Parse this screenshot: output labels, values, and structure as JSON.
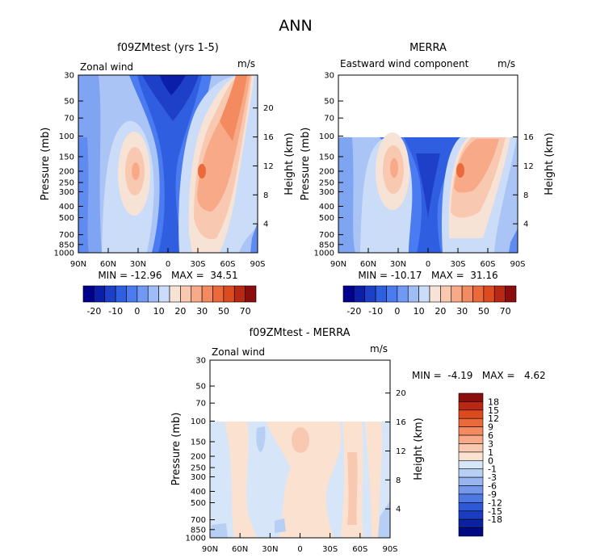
{
  "figure": {
    "title": "ANN"
  },
  "colors": {
    "left_colorbar_hex": [
      "#00008c",
      "#0a1eaa",
      "#1e40c8",
      "#2f5ee0",
      "#4a7bf0",
      "#7098f5",
      "#9fbcf7",
      "#cadcf8",
      "#f7e3d6",
      "#f8c8b0",
      "#f7a988",
      "#f38a60",
      "#eb6a3b",
      "#dc4a20",
      "#b82812",
      "#8c0d0d"
    ],
    "diff_colorbar_hex": [
      "#8c0d0d",
      "#b82812",
      "#dc4a20",
      "#eb6a3b",
      "#f38a60",
      "#f7a988",
      "#f8c8b0",
      "#fbe2d0",
      "#d6e6f8",
      "#b8cff5",
      "#98b5f0",
      "#7498ea",
      "#4f78e2",
      "#2e58d6",
      "#1a3cc0",
      "#0a22a0",
      "#000a80"
    ]
  },
  "chart_data": [
    {
      "type": "heatmap",
      "title": "f09ZMtest (yrs 1-5)",
      "subtitle_left": "Zonal wind",
      "subtitle_right": "m/s",
      "ylabel": "Pressure (mb)",
      "ylabel_right": "Height (km)",
      "x_ticks": [
        "90N",
        "60N",
        "30N",
        "0",
        "30S",
        "60S",
        "90S"
      ],
      "y_ticks": [
        "30",
        "50",
        "70",
        "100",
        "150",
        "200",
        "250",
        "300",
        "400",
        "500",
        "700",
        "850",
        "1000"
      ],
      "y_ticks_right": [
        "20",
        "16",
        "12",
        "8",
        "4"
      ],
      "stats_text": "MIN = -12.96   MAX =  34.51",
      "min": -12.96,
      "max": 34.51,
      "colorbar_labels": [
        "-20",
        "-10",
        "0",
        "10",
        "20",
        "30",
        "50",
        "70"
      ]
    },
    {
      "type": "heatmap",
      "title": "MERRA",
      "subtitle_left": "Eastward wind component",
      "subtitle_right": "m/s",
      "ylabel": "Pressure (mb)",
      "ylabel_right": "Height (km)",
      "x_ticks": [
        "90N",
        "60N",
        "30N",
        "0",
        "30S",
        "60S",
        "90S"
      ],
      "y_ticks": [
        "30",
        "50",
        "70",
        "100",
        "150",
        "200",
        "250",
        "300",
        "400",
        "500",
        "700",
        "850",
        "1000"
      ],
      "y_ticks_right": [
        "16",
        "12",
        "8",
        "4"
      ],
      "data_top_pressure": 100,
      "stats_text": "MIN = -10.17   MAX =  31.16",
      "min": -10.17,
      "max": 31.16,
      "colorbar_labels": [
        "-20",
        "-10",
        "0",
        "10",
        "20",
        "30",
        "50",
        "70"
      ]
    },
    {
      "type": "heatmap",
      "title": "f09ZMtest - MERRA",
      "subtitle_left": "Zonal wind",
      "subtitle_right": "m/s",
      "ylabel": "Pressure (mb)",
      "ylabel_right": "Height (km)",
      "x_ticks": [
        "90N",
        "60N",
        "30N",
        "0",
        "30S",
        "60S",
        "90S"
      ],
      "y_ticks": [
        "30",
        "50",
        "70",
        "100",
        "150",
        "200",
        "250",
        "300",
        "400",
        "500",
        "700",
        "850",
        "1000"
      ],
      "y_ticks_right": [
        "20",
        "16",
        "12",
        "8",
        "4"
      ],
      "data_top_pressure": 100,
      "stats_text": "MIN =  -4.19   MAX =   4.62",
      "min": -4.19,
      "max": 4.62,
      "colorbar_labels": [
        "18",
        "15",
        "12",
        "9",
        "6",
        "3",
        "1",
        "0",
        "-1",
        "-3",
        "-6",
        "-9",
        "-12",
        "-15",
        "-18"
      ]
    }
  ]
}
